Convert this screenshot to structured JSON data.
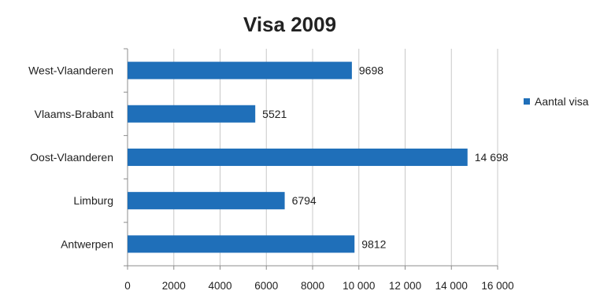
{
  "chart_data": {
    "type": "bar",
    "orientation": "horizontal",
    "title": "Visa 2009",
    "xlabel": "",
    "ylabel": "",
    "categories": [
      "West-Vlaanderen",
      "Vlaams-Brabant",
      "Oost-Vlaanderen",
      "Limburg",
      "Antwerpen"
    ],
    "series": [
      {
        "name": "Aantal visa",
        "values": [
          9698,
          5521,
          14698,
          6794,
          9812
        ],
        "data_labels": [
          "9698",
          "5521",
          "14 698",
          "6794",
          "9812"
        ],
        "color": "#1F6FB9"
      }
    ],
    "xlim": [
      0,
      16000
    ],
    "x_ticks": [
      0,
      2000,
      4000,
      6000,
      8000,
      10000,
      12000,
      14000,
      16000
    ],
    "x_tick_labels": [
      "0",
      "2000",
      "4000",
      "6000",
      "8000",
      "10 000",
      "12 000",
      "14 000",
      "16 000"
    ],
    "grid": "vertical",
    "legend_position": "right"
  }
}
